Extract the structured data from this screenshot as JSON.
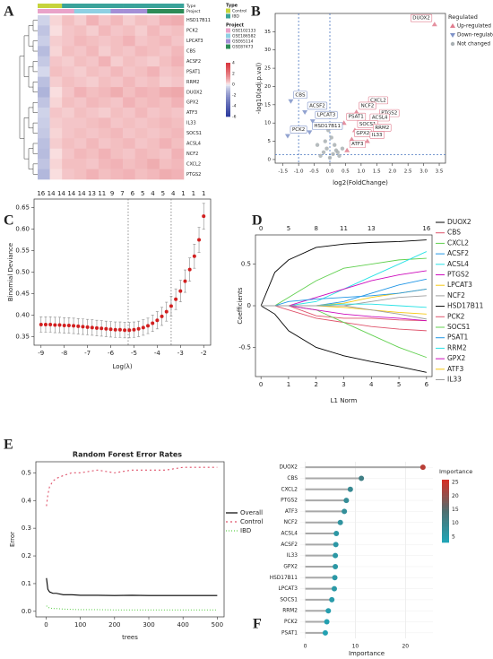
{
  "chart_data": [
    {
      "type": "heatmap",
      "label": "A",
      "rows": [
        "HSD17B11",
        "PCK2",
        "LPCAT3",
        "CBS",
        "ACSF2",
        "PSAT1",
        "RRM2",
        "DUOX2",
        "GPX2",
        "ATF3",
        "IL33",
        "SOCS1",
        "ACSL4",
        "NCF2",
        "CXCL2",
        "PTGS2"
      ],
      "annotation_rows": [
        "Type",
        "Project"
      ],
      "legend": [
        {
          "title": "Type",
          "items": [
            {
              "name": "Control",
              "color": "#c6d43c"
            },
            {
              "name": "IBD",
              "color": "#3aa39a"
            }
          ]
        },
        {
          "title": "Project",
          "items": [
            {
              "name": "GSE102133",
              "color": "#e9a3c9"
            },
            {
              "name": "GSE186582",
              "color": "#8fd0e3"
            },
            {
              "name": "GSE65114",
              "color": "#a48fd6"
            },
            {
              "name": "GSE87473",
              "color": "#2e8b57"
            }
          ]
        }
      ],
      "columns_type": [
        "Control",
        "Control",
        "IBD",
        "IBD",
        "IBD",
        "IBD",
        "IBD",
        "IBD",
        "IBD",
        "IBD",
        "IBD",
        "IBD"
      ],
      "columns_project": [
        "GSE102133",
        "GSE102133",
        "GSE102133",
        "GSE186582",
        "GSE186582",
        "GSE186582",
        "GSE65114",
        "GSE65114",
        "GSE65114",
        "GSE87473",
        "GSE87473",
        "GSE87473"
      ],
      "values": [
        [
          -0.5,
          0.3,
          0.6,
          0.4,
          0.8,
          0.5,
          0.7,
          0.4,
          0.6,
          0.5,
          0.8,
          0.9
        ],
        [
          -0.8,
          0.2,
          0.5,
          0.6,
          0.4,
          0.7,
          0.5,
          0.6,
          0.4,
          0.7,
          0.5,
          0.6
        ],
        [
          -0.6,
          0.4,
          0.5,
          0.7,
          0.6,
          0.5,
          0.6,
          0.8,
          0.5,
          0.6,
          0.7,
          0.5
        ],
        [
          -1.0,
          0.3,
          0.6,
          0.5,
          0.7,
          0.4,
          0.6,
          0.5,
          0.7,
          0.6,
          0.5,
          0.7
        ],
        [
          -0.7,
          0.5,
          0.4,
          0.6,
          0.5,
          0.8,
          0.4,
          0.6,
          0.5,
          0.4,
          0.6,
          0.8
        ],
        [
          -0.4,
          0.6,
          0.5,
          0.4,
          0.6,
          0.5,
          0.7,
          0.5,
          0.6,
          0.8,
          0.5,
          0.6
        ],
        [
          -0.9,
          0.4,
          0.6,
          0.5,
          0.4,
          0.6,
          0.5,
          0.7,
          0.5,
          0.6,
          0.4,
          0.5
        ],
        [
          -1.2,
          0.2,
          0.5,
          0.8,
          0.6,
          0.7,
          0.9,
          0.6,
          0.8,
          0.7,
          0.9,
          1.0
        ],
        [
          -0.8,
          0.3,
          0.6,
          0.5,
          0.7,
          0.6,
          0.5,
          0.8,
          0.6,
          0.7,
          0.6,
          0.8
        ],
        [
          -0.5,
          0.5,
          0.4,
          0.6,
          0.5,
          0.4,
          0.6,
          0.5,
          0.7,
          0.5,
          0.6,
          0.5
        ],
        [
          -0.6,
          0.4,
          0.5,
          0.5,
          0.6,
          0.7,
          0.5,
          0.6,
          0.5,
          0.6,
          0.7,
          0.6
        ],
        [
          -0.7,
          0.3,
          0.5,
          0.6,
          0.5,
          0.6,
          0.7,
          0.5,
          0.6,
          0.5,
          0.6,
          0.7
        ],
        [
          -0.9,
          0.4,
          0.6,
          0.5,
          0.7,
          0.5,
          0.6,
          0.7,
          0.5,
          0.6,
          0.8,
          0.6
        ],
        [
          -1.0,
          0.2,
          0.5,
          0.7,
          0.6,
          0.8,
          0.6,
          0.5,
          0.7,
          0.6,
          0.5,
          0.8
        ],
        [
          -0.8,
          0.3,
          0.6,
          0.6,
          0.5,
          0.7,
          0.8,
          0.6,
          0.7,
          0.9,
          0.6,
          0.7
        ],
        [
          -1.1,
          0.2,
          0.5,
          0.6,
          0.8,
          0.6,
          0.7,
          0.8,
          0.6,
          0.7,
          0.9,
          0.8
        ]
      ],
      "clim": [
        -6,
        4
      ],
      "colorbar_ticks": [
        4,
        2,
        0,
        -2,
        -4,
        -6
      ],
      "colors": {
        "low": "#2b3a9e",
        "mid": "#ffffff",
        "high": "#d9363e"
      }
    },
    {
      "type": "volcano",
      "label": "B",
      "xlabel": "log2(FoldChange)",
      "ylabel": "-log10(adj.p.val)",
      "legend_title": "Regulated",
      "series": [
        {
          "name": "Up-regulated",
          "color": "#e07c8e",
          "marker": "up",
          "labels": [
            "DUOX2",
            "CXCL2",
            "NCF2",
            "PTGS2",
            "ACSL4",
            "PSAT1",
            "SOCS1",
            "RRM2",
            "GPX2",
            "IL33",
            "ATF3"
          ],
          "x": [
            3.35,
            1.15,
            0.85,
            1.5,
            1.2,
            0.45,
            0.8,
            1.3,
            0.7,
            1.2,
            0.55
          ],
          "y": [
            37,
            14.5,
            13,
            11,
            9.8,
            10,
            8,
            7,
            5.5,
            5,
            2.5
          ]
        },
        {
          "name": "Down-regulated",
          "color": "#7f93c8",
          "marker": "down",
          "labels": [
            "CBS",
            "ACSF2",
            "LPCAT3",
            "HSD17B11",
            "PCK2"
          ],
          "x": [
            -1.25,
            -0.8,
            -0.55,
            -0.65,
            -1.35
          ],
          "y": [
            16,
            13,
            10.5,
            7.5,
            6.5
          ]
        },
        {
          "name": "Not changed",
          "color": "#a9b0b3",
          "marker": "circle",
          "x": [
            -0.3,
            -0.2,
            -0.1,
            0,
            0.1,
            0.2,
            0.3,
            -0.4,
            0.4,
            0.05,
            -0.15,
            0.25,
            -0.05,
            0.15
          ],
          "y": [
            1,
            2,
            3,
            0.5,
            1.5,
            2.5,
            1,
            4,
            3,
            6,
            5,
            2,
            8,
            4
          ]
        }
      ],
      "xlim": [
        -1.75,
        3.7
      ],
      "ylim": [
        -1,
        40
      ],
      "xticks": [
        -1.5,
        {
          "value": -1,
          "label": "-1.0"
        },
        -0.5,
        {
          "value": 0,
          "label": "0.0"
        },
        0.5,
        {
          "value": 1,
          "label": "1.0"
        },
        1.5,
        {
          "value": 2,
          "label": "2.0"
        },
        2.5,
        {
          "value": 3,
          "label": "3.0"
        },
        3.5
      ],
      "yticks": [
        0,
        5,
        10,
        15,
        20,
        25,
        30,
        35
      ],
      "vlines": [
        -1,
        0
      ],
      "hline": 1.3
    },
    {
      "type": "cv",
      "label": "C",
      "xlabel": "Log(λ)",
      "ylabel": "Binomial Deviance",
      "color": "#d21f1f",
      "x": [
        -9,
        -8.8,
        -8.6,
        -8.4,
        -8.2,
        -8,
        -7.8,
        -7.6,
        -7.4,
        -7.2,
        -7,
        -6.8,
        -6.6,
        -6.4,
        -6.2,
        -6,
        -5.8,
        -5.6,
        -5.4,
        -5.2,
        -5,
        -4.8,
        -4.6,
        -4.4,
        -4.2,
        -4,
        -3.8,
        -3.6,
        -3.4,
        -3.2,
        -3,
        -2.8,
        -2.6,
        -2.4,
        -2.2,
        -2
      ],
      "values": [
        0.378,
        0.378,
        0.378,
        0.377,
        0.377,
        0.376,
        0.376,
        0.375,
        0.374,
        0.373,
        0.372,
        0.371,
        0.37,
        0.369,
        0.368,
        0.367,
        0.366,
        0.366,
        0.365,
        0.365,
        0.366,
        0.368,
        0.371,
        0.375,
        0.381,
        0.388,
        0.397,
        0.408,
        0.421,
        0.437,
        0.456,
        0.479,
        0.506,
        0.537,
        0.575,
        0.63
      ],
      "errors": [
        0.018,
        0.018,
        0.018,
        0.018,
        0.018,
        0.018,
        0.018,
        0.018,
        0.018,
        0.018,
        0.018,
        0.018,
        0.018,
        0.018,
        0.018,
        0.018,
        0.018,
        0.018,
        0.018,
        0.018,
        0.018,
        0.018,
        0.018,
        0.018,
        0.019,
        0.02,
        0.021,
        0.022,
        0.023,
        0.024,
        0.025,
        0.026,
        0.027,
        0.028,
        0.029,
        0.03
      ],
      "xlim": [
        -9.3,
        -1.7
      ],
      "ylim": [
        0.33,
        0.67
      ],
      "xticks": [
        -9,
        -8,
        -7,
        -6,
        -5,
        -4,
        -3,
        -2
      ],
      "yticks": [
        0.35,
        {
          "value": 0.4,
          "label": "0.40"
        },
        0.45,
        {
          "value": 0.5,
          "label": "0.50"
        },
        0.55,
        {
          "value": 0.6,
          "label": "0.60"
        },
        0.65
      ],
      "vlines": [
        -5.25,
        -3.4
      ],
      "top_labels": [
        16,
        14,
        14,
        14,
        14,
        13,
        11,
        9,
        7,
        6,
        5,
        4,
        5,
        4,
        1,
        1,
        1
      ],
      "top_x": [
        -9,
        -8.5625,
        -8.125,
        -7.6875,
        -7.25,
        -6.8125,
        -6.375,
        -5.9375,
        -5.5,
        -5.0625,
        -4.625,
        -4.1875,
        -3.75,
        -3.3125,
        -2.875,
        -2.4375,
        -2
      ]
    },
    {
      "type": "lasso",
      "label": "D",
      "xlabel": "L1 Norm",
      "ylabel": "Coefficients",
      "x": [
        0,
        0.5,
        1,
        2,
        3,
        4,
        5,
        6
      ],
      "series": [
        {
          "name": "DUOX2",
          "color": "#000000",
          "values": [
            0,
            0.4,
            0.55,
            0.7,
            0.74,
            0.76,
            0.77,
            0.79
          ]
        },
        {
          "name": "CBS",
          "color": "#df536b",
          "values": [
            0,
            0,
            0,
            -0.12,
            -0.15,
            -0.15,
            -0.17,
            -0.18
          ]
        },
        {
          "name": "CXCL2",
          "color": "#61d04f",
          "values": [
            0,
            0,
            0.1,
            0.3,
            0.45,
            0.5,
            0.55,
            0.57
          ]
        },
        {
          "name": "ACSF2",
          "color": "#2297e6",
          "values": [
            0,
            0,
            0,
            0,
            0.05,
            0.15,
            0.25,
            0.32
          ]
        },
        {
          "name": "ACSL4",
          "color": "#28e2e5",
          "values": [
            0,
            0,
            0,
            0.05,
            0.2,
            0.35,
            0.5,
            0.65
          ]
        },
        {
          "name": "PTGS2",
          "color": "#cd0bbc",
          "values": [
            0,
            0,
            0,
            0.1,
            0.2,
            0.3,
            0.37,
            0.42
          ]
        },
        {
          "name": "LPCAT3",
          "color": "#f5c710",
          "values": [
            0,
            0,
            0,
            0,
            0.03,
            0.1,
            0.15,
            0.2
          ]
        },
        {
          "name": "NCF2",
          "color": "#9e9e9e",
          "values": [
            0,
            0,
            0,
            0,
            0,
            0.05,
            0.1,
            0.12
          ]
        },
        {
          "name": "HSD17B11",
          "color": "#000000",
          "values": [
            0,
            -0.1,
            -0.3,
            -0.5,
            -0.6,
            -0.67,
            -0.73,
            -0.8
          ]
        },
        {
          "name": "PCK2",
          "color": "#df536b",
          "values": [
            0,
            0,
            -0.05,
            -0.15,
            -0.2,
            -0.25,
            -0.28,
            -0.3
          ]
        },
        {
          "name": "SOCS1",
          "color": "#61d04f",
          "values": [
            0,
            0,
            0,
            -0.05,
            -0.2,
            -0.35,
            -0.5,
            -0.62
          ]
        },
        {
          "name": "PSAT1",
          "color": "#2297e6",
          "values": [
            0,
            0,
            0.05,
            0.08,
            0.1,
            0.12,
            0.15,
            0.2
          ]
        },
        {
          "name": "RRM2",
          "color": "#28e2e5",
          "values": [
            0,
            0,
            0,
            0,
            0.02,
            0.02,
            0,
            -0.02
          ]
        },
        {
          "name": "GPX2",
          "color": "#cd0bbc",
          "values": [
            0,
            0,
            0,
            -0.05,
            -0.1,
            -0.13,
            -0.15,
            -0.18
          ]
        },
        {
          "name": "ATF3",
          "color": "#f5c710",
          "values": [
            0,
            0,
            0,
            0,
            -0.02,
            -0.05,
            -0.08,
            -0.1
          ]
        },
        {
          "name": "IL33",
          "color": "#9e9e9e",
          "values": [
            0,
            0,
            0,
            0,
            0,
            -0.05,
            -0.1,
            -0.16
          ]
        }
      ],
      "xlim": [
        -0.2,
        6.2
      ],
      "ylim": [
        -0.85,
        0.85
      ],
      "xticks": [
        0,
        1,
        2,
        3,
        4,
        5,
        6
      ],
      "yticks": [
        -0.5,
        0,
        0.5
      ],
      "top_labels": [
        0,
        5,
        8,
        11,
        13,
        16
      ],
      "top_x": [
        0,
        1,
        2,
        3,
        4,
        6
      ]
    },
    {
      "type": "rf",
      "label": "E",
      "title": "Random Forest Error Rates",
      "xlabel": "trees",
      "ylabel": "Error",
      "x": [
        1,
        5,
        10,
        20,
        30,
        50,
        75,
        100,
        150,
        200,
        250,
        300,
        350,
        400,
        450,
        500
      ],
      "series": [
        {
          "name": "Overall",
          "color": "#000000",
          "dash": "none",
          "values": [
            0.12,
            0.08,
            0.07,
            0.065,
            0.065,
            0.06,
            0.06,
            0.058,
            0.058,
            0.057,
            0.058,
            0.057,
            0.057,
            0.057,
            0.057,
            0.057
          ]
        },
        {
          "name": "Control",
          "color": "#df536b",
          "dash": "2,3",
          "values": [
            0.38,
            0.42,
            0.45,
            0.47,
            0.48,
            0.49,
            0.5,
            0.5,
            0.51,
            0.5,
            0.51,
            0.51,
            0.51,
            0.52,
            0.52,
            0.52
          ]
        },
        {
          "name": "IBD",
          "color": "#61d04f",
          "dash": "1,2",
          "values": [
            0.02,
            0.015,
            0.012,
            0.01,
            0.01,
            0.008,
            0.007,
            0.006,
            0.006,
            0.005,
            0.005,
            0.005,
            0.005,
            0.005,
            0.005,
            0.005
          ]
        }
      ],
      "xlim": [
        -30,
        520
      ],
      "ylim": [
        -0.02,
        0.54
      ],
      "xticks": [
        0,
        100,
        200,
        300,
        400,
        500
      ],
      "yticks": [
        {
          "value": 0,
          "label": "0.0"
        },
        0.1,
        0.2,
        0.3,
        0.4,
        0.5
      ]
    },
    {
      "type": "lollipop",
      "label": "F",
      "xlabel": "Importance",
      "legend_title": "Importance",
      "categories": [
        "DUOX2",
        "CBS",
        "CXCL2",
        "PTGS2",
        "ATF3",
        "NCF2",
        "ACSL4",
        "ACSF2",
        "IL33",
        "GPX2",
        "HSD17B11",
        "LPCAT3",
        "SOCS1",
        "RRM2",
        "PCK2",
        "PSAT1"
      ],
      "values": [
        23.5,
        11.2,
        9,
        8.2,
        7.8,
        7,
        6.2,
        6.1,
        6,
        6,
        5.9,
        5.8,
        5.3,
        4.6,
        4.3,
        4
      ],
      "xlim": [
        -1,
        25.5
      ],
      "xticks": [
        0,
        10,
        20
      ],
      "clim": [
        3,
        26
      ],
      "colorbar_ticks": [
        5,
        10,
        15,
        20,
        25
      ],
      "colors": [
        "#1fa6b8",
        "#4f6f70",
        "#d62f25"
      ]
    }
  ]
}
